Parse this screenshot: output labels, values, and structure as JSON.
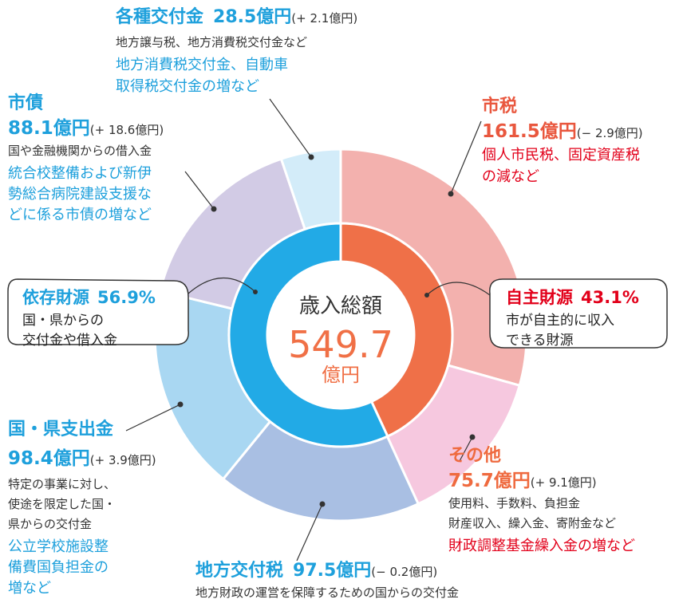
{
  "chart_data": {
    "type": "donut",
    "center_label": "歳入総額",
    "total": 549.7,
    "total_unit": "億円",
    "categories": [
      "市税",
      "その他",
      "地方交付税",
      "国・県支出金",
      "市債",
      "各種交付金"
    ],
    "values": [
      161.5,
      75.7,
      97.5,
      98.4,
      88.1,
      28.5
    ],
    "value_labels": [
      "161.5億円",
      "75.7億円",
      "97.5億円",
      "98.4億円",
      "88.1億円",
      "28.5億円"
    ],
    "changes": [
      "(− 2.9億円)",
      "(+ 9.1億円)",
      "(− 0.2億円)",
      "(+ 3.9億円)",
      "(+ 18.6億円)",
      "(+ 2.1億円)"
    ],
    "colors": [
      "#f3b1ae",
      "#f6c8df",
      "#a9bfe3",
      "#a9d7f2",
      "#d2cbe5",
      "#d3ecf9"
    ],
    "descriptions": [
      [],
      [
        "使用料、手数料、負担金",
        "財産収入、繰入金、寄附金など"
      ],
      [
        "地方財政の運営を保障するための国からの交付金"
      ],
      [
        "特定の事業に対し、",
        "使途を限定した国・",
        "県からの交付金"
      ],
      [
        "国や金融機関からの借入金"
      ],
      [
        "地方譲与税、地方消費税交付金など"
      ]
    ],
    "notes": [
      [
        "個人市民税、固定資産税",
        "の減など"
      ],
      [
        "財政調整基金繰入金の増など"
      ],
      [],
      [
        "公立学校施設整",
        "備費国負担金の",
        "増など"
      ],
      [
        "統合校整備および新伊",
        "勢総合病院建設支援な",
        "どに係る市債の増など"
      ],
      [
        "地方消費税交付金、自動車",
        "取得税交付金の増など"
      ]
    ],
    "inner": {
      "categories": [
        "自主財源",
        "依存財源"
      ],
      "values": [
        43.1,
        56.9
      ],
      "value_labels": [
        "43.1%",
        "56.9%"
      ],
      "colors": [
        "#ef7048",
        "#22aae6"
      ],
      "descriptions": [
        [
          "市が自主的に収入",
          "できる財源"
        ],
        [
          "国・県からの",
          "交付金や借入金"
        ]
      ]
    }
  }
}
